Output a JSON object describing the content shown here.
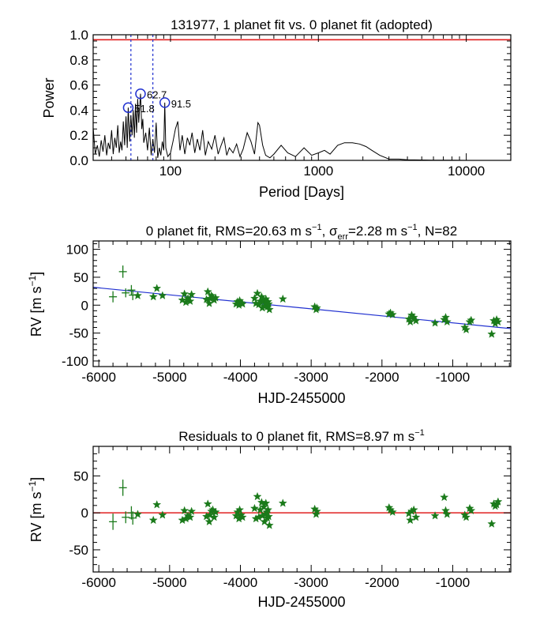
{
  "chart_data": [
    {
      "id": "periodogram",
      "type": "line",
      "title": "131977,  1 planet fit vs. 0 planet fit (adopted)",
      "xlabel": "Period [Days]",
      "ylabel": "Power",
      "xscale": "log",
      "xlim": [
        30,
        20000
      ],
      "ylim": [
        0.0,
        1.0
      ],
      "xticks": [
        100,
        1000,
        10000
      ],
      "xtick_labels": [
        "100",
        "1000",
        "10000"
      ],
      "yticks": [
        0.0,
        0.2,
        0.4,
        0.6,
        0.8,
        1.0
      ],
      "ytick_labels": [
        "0.0",
        "0.2",
        "0.4",
        "0.6",
        "0.8",
        "1.0"
      ],
      "threshold": {
        "value": 0.96,
        "color": "#e02020"
      },
      "alias_lines": {
        "x": [
          54,
          76
        ],
        "color": "#2030d0"
      },
      "peaks": [
        {
          "period": 51.8,
          "power": 0.42,
          "label": "51.8"
        },
        {
          "period": 62.7,
          "power": 0.53,
          "label": "62.7"
        },
        {
          "period": 91.5,
          "power": 0.46,
          "label": "91.5"
        }
      ],
      "series": [
        {
          "name": "power",
          "color": "#000000",
          "x": [
            30,
            31,
            32,
            33,
            34,
            35,
            36,
            37,
            38,
            39,
            40,
            41,
            42,
            43,
            44,
            45,
            46,
            47,
            48,
            49,
            50,
            51,
            51.8,
            53,
            54,
            55,
            56,
            57,
            58,
            59,
            60,
            61,
            62.7,
            64,
            65,
            66,
            68,
            70,
            72,
            74,
            76,
            78,
            80,
            82,
            84,
            86,
            88,
            90,
            91.5,
            93,
            96,
            100,
            104,
            108,
            112,
            116,
            120,
            125,
            130,
            135,
            140,
            146,
            152,
            158,
            165,
            172,
            180,
            190,
            200,
            210,
            220,
            230,
            240,
            250,
            265,
            280,
            295,
            310,
            330,
            350,
            370,
            390,
            400,
            420,
            440,
            470,
            500,
            560,
            620,
            700,
            800,
            900,
            1000,
            1100,
            1200,
            1350,
            1500,
            1700,
            1900,
            2100,
            2300,
            2600,
            3000,
            3500,
            4000,
            5000,
            6000,
            7000,
            8000,
            10000,
            12000,
            14000,
            16000,
            18000,
            20000
          ],
          "y": [
            0.26,
            0.05,
            0.12,
            0.03,
            0.16,
            0.07,
            0.2,
            0.04,
            0.14,
            0.09,
            0.24,
            0.05,
            0.18,
            0.1,
            0.28,
            0.06,
            0.15,
            0.08,
            0.31,
            0.12,
            0.35,
            0.1,
            0.42,
            0.15,
            0.36,
            0.2,
            0.4,
            0.18,
            0.45,
            0.22,
            0.49,
            0.3,
            0.53,
            0.25,
            0.33,
            0.14,
            0.22,
            0.08,
            0.26,
            0.04,
            0.17,
            0.06,
            0.3,
            0.02,
            0.1,
            0.04,
            0.15,
            0.08,
            0.46,
            0.1,
            0.03,
            0.06,
            0.15,
            0.25,
            0.31,
            0.08,
            0.2,
            0.05,
            0.18,
            0.12,
            0.22,
            0.06,
            0.17,
            0.08,
            0.24,
            0.04,
            0.15,
            0.09,
            0.2,
            0.05,
            0.12,
            0.18,
            0.04,
            0.1,
            0.06,
            0.13,
            0.03,
            0.09,
            0.22,
            0.15,
            0.05,
            0.3,
            0.28,
            0.12,
            0.04,
            0.02,
            0.05,
            0.12,
            0.06,
            0.03,
            0.1,
            0.04,
            0.06,
            0.08,
            0.05,
            0.12,
            0.14,
            0.14,
            0.13,
            0.11,
            0.08,
            0.04,
            0.01,
            0.01,
            0.005,
            0.003,
            0.002,
            0.001,
            0.001,
            0.0,
            0.0,
            0.0,
            0.0,
            0.0,
            0.0
          ]
        }
      ]
    },
    {
      "id": "rv",
      "type": "scatter",
      "title_pre": "0 planet fit, RMS=20.63 m s",
      "title_sup1": "−1",
      "title_mid": ", σ",
      "title_sub": "err",
      "title_mid2": "=2.28 m s",
      "title_sup2": "−1",
      "title_post": ", N=82",
      "xlabel": "HJD-2455000",
      "ylabel_main": "RV [m s",
      "ylabel_sup": "−1",
      "ylabel_end": "]",
      "xlim": [
        -6080,
        -180
      ],
      "ylim": [
        -110,
        115
      ],
      "xticks": [
        -6000,
        -5000,
        -4000,
        -3000,
        -2000,
        -1000
      ],
      "xtick_labels": [
        "-6000",
        "-5000",
        "-4000",
        "-3000",
        "-2000",
        "-1000"
      ],
      "yticks": [
        -100,
        -50,
        0,
        50,
        100
      ],
      "ytick_labels": [
        "-100",
        "-50",
        "0",
        "50",
        "100"
      ],
      "marker_color": "#1a7a1a",
      "trend": {
        "x": [
          -6080,
          -180
        ],
        "y": [
          32,
          -42
        ],
        "color": "#2030d0"
      },
      "error_points": [
        {
          "x": -5800,
          "y": 15,
          "err": 10
        },
        {
          "x": -5660,
          "y": 60,
          "err": 11
        },
        {
          "x": -5620,
          "y": 22,
          "err": 8
        },
        {
          "x": -5540,
          "y": 27,
          "err": 9
        },
        {
          "x": -5520,
          "y": 18,
          "err": 9
        }
      ],
      "star_points": [
        [
          -5450,
          17
        ],
        [
          -5230,
          15
        ],
        [
          -5180,
          30
        ],
        [
          -5100,
          17
        ],
        [
          -4820,
          9
        ],
        [
          -4790,
          20
        ],
        [
          -4770,
          5
        ],
        [
          -4740,
          12
        ],
        [
          -4710,
          7
        ],
        [
          -4690,
          19
        ],
        [
          -4480,
          10
        ],
        [
          -4460,
          24
        ],
        [
          -4440,
          3
        ],
        [
          -4430,
          12
        ],
        [
          -4410,
          17
        ],
        [
          -4390,
          14
        ],
        [
          -4370,
          9
        ],
        [
          -4350,
          13
        ],
        [
          -4060,
          2
        ],
        [
          -4040,
          6
        ],
        [
          -4020,
          0
        ],
        [
          -4010,
          8
        ],
        [
          -3990,
          4
        ],
        [
          -3970,
          2
        ],
        [
          -3800,
          12
        ],
        [
          -3780,
          3
        ],
        [
          -3760,
          21
        ],
        [
          -3740,
          1
        ],
        [
          -3720,
          7
        ],
        [
          -3700,
          15
        ],
        [
          -3690,
          -5
        ],
        [
          -3670,
          9
        ],
        [
          -3660,
          -2
        ],
        [
          -3650,
          3
        ],
        [
          -3640,
          11
        ],
        [
          -3630,
          5
        ],
        [
          -3620,
          -3
        ],
        [
          -3610,
          6
        ],
        [
          -3600,
          2
        ],
        [
          -3590,
          -8
        ],
        [
          -3400,
          11
        ],
        [
          -2950,
          -3
        ],
        [
          -2930,
          -8
        ],
        [
          -2920,
          -5
        ],
        [
          -1900,
          -16
        ],
        [
          -1880,
          -14
        ],
        [
          -1850,
          -17
        ],
        [
          -1620,
          -25
        ],
        [
          -1600,
          -30
        ],
        [
          -1580,
          -18
        ],
        [
          -1550,
          -22
        ],
        [
          -1520,
          -28
        ],
        [
          -1250,
          -32
        ],
        [
          -1120,
          -26
        ],
        [
          -1100,
          -22
        ],
        [
          -1080,
          -30
        ],
        [
          -830,
          -40
        ],
        [
          -810,
          -44
        ],
        [
          -760,
          -30
        ],
        [
          -740,
          -27
        ],
        [
          -450,
          -52
        ],
        [
          -420,
          -28
        ],
        [
          -400,
          -33
        ],
        [
          -380,
          -26
        ],
        [
          -360,
          -30
        ]
      ]
    },
    {
      "id": "residuals",
      "type": "scatter",
      "title_pre": "Residuals to 0 planet fit, RMS=8.97 m s",
      "title_sup": "−1",
      "xlabel": "HJD-2455000",
      "ylabel_main": "RV [m s",
      "ylabel_sup": "−1",
      "ylabel_end": "]",
      "xlim": [
        -6080,
        -180
      ],
      "ylim": [
        -80,
        90
      ],
      "xticks": [
        -6000,
        -5000,
        -4000,
        -3000,
        -2000,
        -1000
      ],
      "xtick_labels": [
        "-6000",
        "-5000",
        "-4000",
        "-3000",
        "-2000",
        "-1000"
      ],
      "yticks": [
        -50,
        0,
        50
      ],
      "ytick_labels": [
        "-50",
        "0",
        "50"
      ],
      "marker_color": "#1a7a1a",
      "zero_line": {
        "y": 0,
        "color": "#e02020"
      },
      "error_points": [
        {
          "x": -5800,
          "y": -12,
          "err": 11
        },
        {
          "x": -5660,
          "y": 34,
          "err": 11
        },
        {
          "x": -5620,
          "y": -6,
          "err": 8
        },
        {
          "x": -5540,
          "y": 0,
          "err": 9
        },
        {
          "x": -5520,
          "y": -7,
          "err": 9
        }
      ],
      "star_points": [
        [
          -5450,
          -2
        ],
        [
          -5230,
          -10
        ],
        [
          -5180,
          11
        ],
        [
          -5100,
          -3
        ],
        [
          -4820,
          -10
        ],
        [
          -4790,
          3
        ],
        [
          -4770,
          -8
        ],
        [
          -4740,
          -4
        ],
        [
          -4710,
          -6
        ],
        [
          -4690,
          2
        ],
        [
          -4480,
          -5
        ],
        [
          -4460,
          12
        ],
        [
          -4440,
          -12
        ],
        [
          -4430,
          -3
        ],
        [
          -4410,
          2
        ],
        [
          -4390,
          4
        ],
        [
          -4370,
          -6
        ],
        [
          -4350,
          1
        ],
        [
          -4060,
          -4
        ],
        [
          -4040,
          1
        ],
        [
          -4020,
          -8
        ],
        [
          -4010,
          4
        ],
        [
          -3990,
          -3
        ],
        [
          -3970,
          -6
        ],
        [
          -3800,
          6
        ],
        [
          -3780,
          -8
        ],
        [
          -3760,
          22
        ],
        [
          -3740,
          -6
        ],
        [
          -3720,
          4
        ],
        [
          -3700,
          14
        ],
        [
          -3690,
          -4
        ],
        [
          -3670,
          8
        ],
        [
          -3660,
          -12
        ],
        [
          -3650,
          -2
        ],
        [
          -3640,
          13
        ],
        [
          -3630,
          1
        ],
        [
          -3620,
          -7
        ],
        [
          -3610,
          4
        ],
        [
          -3600,
          -5
        ],
        [
          -3590,
          -17
        ],
        [
          -3400,
          13
        ],
        [
          -2950,
          5
        ],
        [
          -2930,
          -2
        ],
        [
          -2920,
          2
        ],
        [
          -1900,
          7
        ],
        [
          -1880,
          4
        ],
        [
          -1850,
          1
        ],
        [
          -1620,
          -1
        ],
        [
          -1600,
          -10
        ],
        [
          -1580,
          2
        ],
        [
          -1550,
          4
        ],
        [
          -1520,
          -6
        ],
        [
          -1250,
          -4
        ],
        [
          -1120,
          21
        ],
        [
          -1100,
          3
        ],
        [
          -1080,
          -2
        ],
        [
          -830,
          -3
        ],
        [
          -810,
          -6
        ],
        [
          -760,
          6
        ],
        [
          -740,
          3
        ],
        [
          -450,
          -15
        ],
        [
          -420,
          12
        ],
        [
          -400,
          9
        ],
        [
          -380,
          11
        ],
        [
          -360,
          15
        ]
      ]
    }
  ]
}
